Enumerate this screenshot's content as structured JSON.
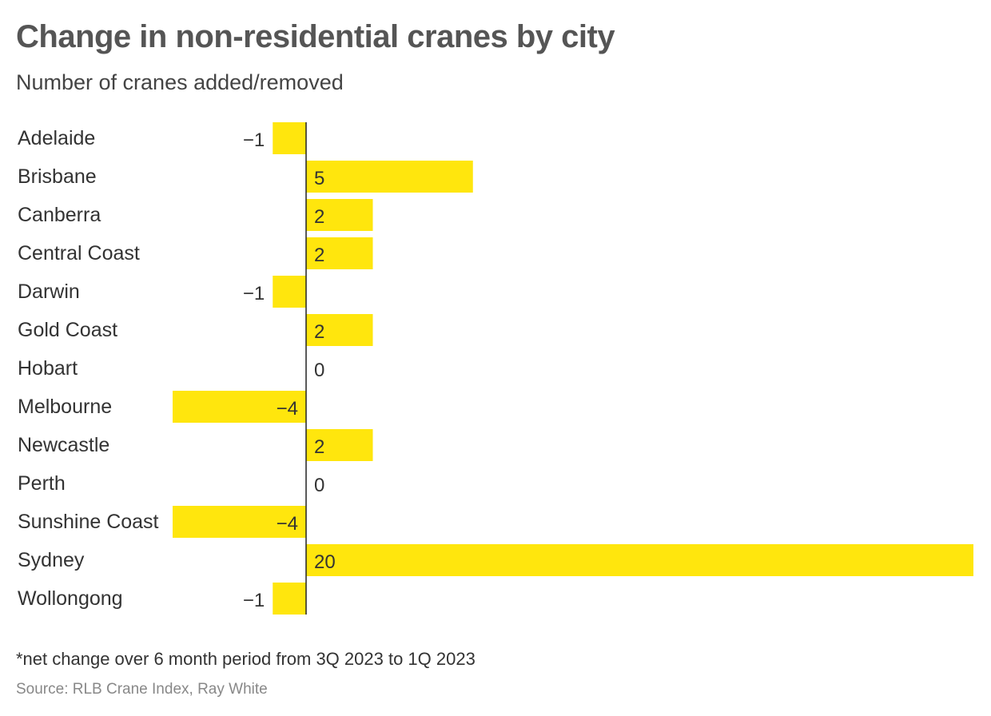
{
  "header": {
    "title": "Change in non-residential cranes by city",
    "subtitle": "Number of cranes added/removed"
  },
  "footer": {
    "note": "*net change over 6 month period from 3Q 2023 to 1Q 2023",
    "source": "Source: RLB Crane Index, Ray White"
  },
  "colors": {
    "bar": "#FFE60D",
    "axis": "#222222",
    "label": "#333333"
  },
  "chart_data": {
    "type": "bar",
    "orientation": "horizontal",
    "categories": [
      "Adelaide",
      "Brisbane",
      "Canberra",
      "Central Coast",
      "Darwin",
      "Gold Coast",
      "Hobart",
      "Melbourne",
      "Newcastle",
      "Perth",
      "Sunshine Coast",
      "Sydney",
      "Wollongong"
    ],
    "values": [
      -1,
      5,
      2,
      2,
      -1,
      2,
      0,
      -4,
      2,
      0,
      -4,
      20,
      -1
    ],
    "value_labels": [
      "−1",
      "5",
      "2",
      "2",
      "−1",
      "2",
      "0",
      "−4",
      "2",
      "0",
      "−4",
      "20",
      "−1"
    ],
    "xlim": [
      -4,
      20
    ],
    "grid": false,
    "legend": "none"
  }
}
